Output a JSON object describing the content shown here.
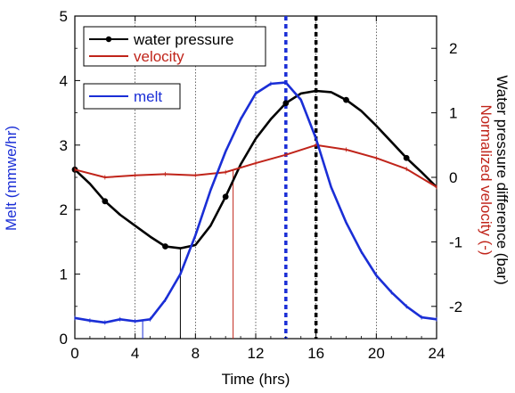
{
  "chart_data": {
    "type": "line",
    "title": "",
    "xlabel": "Time (hrs)",
    "ylabel_left": "Melt (mmwe/hr)",
    "ylabel_right_line1": "Water pressure difference (bar)",
    "ylabel_right_line2": "Normalized velocity (-)",
    "xlim": [
      0,
      24
    ],
    "ylim_left": [
      0,
      5
    ],
    "ylim_right": [
      -2.5,
      2.5
    ],
    "x_ticks": [
      "0",
      "4",
      "8",
      "12",
      "16",
      "20",
      "24"
    ],
    "y_ticks_left": [
      "0",
      "1",
      "2",
      "3",
      "4",
      "5"
    ],
    "y_ticks_right": [
      "-2",
      "-1",
      "0",
      "1",
      "2"
    ],
    "legend": [
      {
        "label": "water pressure",
        "color": "#000000"
      },
      {
        "label": "velocity",
        "color": "#c0241a"
      },
      {
        "label": "melt",
        "color": "#1a2ed6"
      }
    ],
    "series": [
      {
        "name": "water pressure",
        "color": "#000000",
        "axis": "right",
        "x": [
          0,
          1,
          2,
          3,
          4,
          5,
          6,
          7,
          8,
          9,
          10,
          11,
          12,
          13,
          14,
          15,
          16,
          17,
          18,
          19,
          20,
          21,
          22,
          23,
          24
        ],
        "values": [
          0.12,
          -0.1,
          -0.37,
          -0.58,
          -0.75,
          -0.92,
          -1.07,
          -1.1,
          -1.05,
          -0.75,
          -0.3,
          0.2,
          0.6,
          0.9,
          1.15,
          1.3,
          1.34,
          1.32,
          1.2,
          1.03,
          0.8,
          0.55,
          0.3,
          0.08,
          -0.15
        ],
        "marker_x": [
          0,
          2,
          6,
          10,
          14,
          18,
          22
        ]
      },
      {
        "name": "velocity",
        "color": "#c0241a",
        "axis": "right",
        "x": [
          0,
          2,
          4,
          6,
          8,
          10,
          12,
          14,
          16,
          18,
          20,
          22,
          24
        ],
        "values": [
          0.12,
          0.0,
          0.03,
          0.05,
          0.03,
          0.08,
          0.22,
          0.35,
          0.5,
          0.43,
          0.3,
          0.13,
          -0.15
        ]
      },
      {
        "name": "melt",
        "color": "#1a2ed6",
        "axis": "left",
        "x": [
          0,
          1,
          2,
          3,
          4,
          5,
          6,
          7,
          8,
          9,
          10,
          11,
          12,
          13,
          14,
          15,
          16,
          17,
          18,
          19,
          20,
          21,
          22,
          23,
          24
        ],
        "values": [
          0.32,
          0.28,
          0.25,
          0.3,
          0.27,
          0.3,
          0.6,
          1.0,
          1.6,
          2.3,
          2.9,
          3.4,
          3.8,
          3.95,
          3.97,
          3.7,
          3.1,
          2.35,
          1.8,
          1.35,
          0.98,
          0.72,
          0.5,
          0.33,
          0.3
        ]
      }
    ],
    "reference_lines": [
      {
        "x": 14,
        "color": "#1a2ed6",
        "style": "dotted"
      },
      {
        "x": 16,
        "color": "#000000",
        "style": "dotted"
      }
    ],
    "drop_lines": [
      {
        "x": 4.5,
        "color": "#1a2ed6"
      },
      {
        "x": 7,
        "color": "#000000"
      },
      {
        "x": 10.5,
        "color": "#c0241a"
      }
    ],
    "grid_lines_x": [
      4,
      8,
      12,
      16,
      20
    ]
  }
}
